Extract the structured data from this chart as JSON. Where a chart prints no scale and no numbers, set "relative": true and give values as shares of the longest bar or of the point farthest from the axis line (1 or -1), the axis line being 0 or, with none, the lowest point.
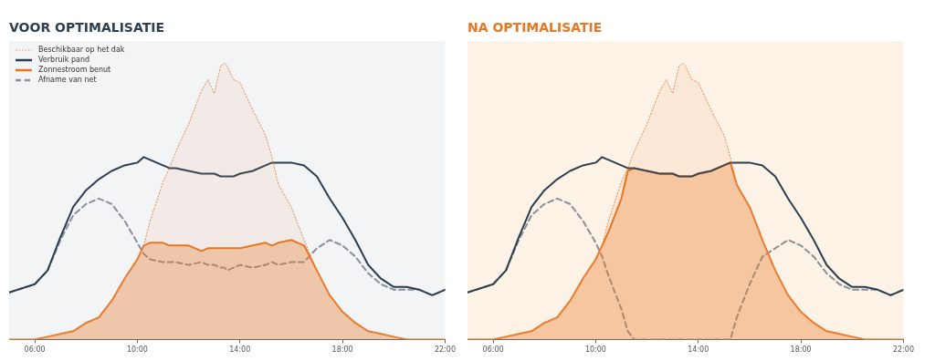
{
  "chart_data": [
    {
      "type": "line",
      "title": "VOOR OPTIMALISATIE",
      "relative": true,
      "marker": "none",
      "legend": "top left",
      "tick_labels": "x",
      "xlim": [
        5,
        22
      ],
      "xticks": [
        {
          "value": 6,
          "label": "06:00"
        },
        {
          "value": 10,
          "label": "10:00"
        },
        {
          "value": 14,
          "label": "14:00"
        },
        {
          "value": 18,
          "label": "18:00"
        },
        {
          "value": 22,
          "label": "22:00"
        }
      ],
      "x": [
        5,
        6,
        6.5,
        7,
        7.5,
        8,
        8.5,
        9,
        9.5,
        10,
        10.25,
        10.5,
        11,
        11.25,
        11.5,
        12,
        12.5,
        12.75,
        13,
        13.25,
        13.4,
        13.5,
        13.75,
        14,
        14.5,
        15,
        15.25,
        15.5,
        16,
        16.5,
        17,
        17.5,
        18,
        18.5,
        19,
        19.5,
        20,
        20.5,
        21,
        21.5,
        22
      ],
      "series": [
        {
          "name": "Beschikbaar op het dak",
          "type": "area",
          "line_style": "dotted",
          "color": "#e8915a",
          "values": [
            0,
            0,
            0.01,
            0.02,
            0.03,
            0.06,
            0.08,
            0.14,
            0.22,
            0.29,
            0.34,
            0.43,
            0.57,
            0.62,
            0.68,
            0.78,
            0.9,
            0.94,
            0.89,
            0.99,
            1,
            0.99,
            0.94,
            0.93,
            0.83,
            0.74,
            0.66,
            0.56,
            0.48,
            0.36,
            0.25,
            0.16,
            0.1,
            0.06,
            0.03,
            0.02,
            0.01,
            0,
            0,
            0,
            0
          ]
        },
        {
          "name": "Verbruik pand",
          "type": "line",
          "line_style": "solid",
          "color": "#2c3e50",
          "values": [
            0.17,
            0.2,
            0.25,
            0.37,
            0.48,
            0.54,
            0.58,
            0.61,
            0.63,
            0.64,
            0.66,
            0.65,
            0.63,
            0.62,
            0.62,
            0.61,
            0.6,
            0.6,
            0.6,
            0.59,
            0.59,
            0.59,
            0.59,
            0.6,
            0.61,
            0.63,
            0.64,
            0.64,
            0.64,
            0.63,
            0.59,
            0.51,
            0.44,
            0.36,
            0.27,
            0.22,
            0.19,
            0.19,
            0.18,
            0.16,
            0.18
          ]
        },
        {
          "name": "Zonnestroom benut",
          "type": "area",
          "line_style": "solid",
          "color": "#e8731a",
          "values": [
            0,
            0,
            0.01,
            0.02,
            0.03,
            0.06,
            0.08,
            0.14,
            0.22,
            0.29,
            0.34,
            0.35,
            0.35,
            0.34,
            0.34,
            0.34,
            0.32,
            0.33,
            0.33,
            0.33,
            0.33,
            0.33,
            0.33,
            0.33,
            0.34,
            0.35,
            0.34,
            0.35,
            0.36,
            0.34,
            0.25,
            0.16,
            0.1,
            0.06,
            0.03,
            0.02,
            0.01,
            0,
            0,
            0,
            0
          ]
        },
        {
          "name": "Afname van net",
          "type": "line",
          "line_style": "dashed",
          "color": "#8a9099",
          "values": [
            0.17,
            0.2,
            0.25,
            0.36,
            0.45,
            0.49,
            0.51,
            0.49,
            0.43,
            0.35,
            0.31,
            0.29,
            0.28,
            0.28,
            0.28,
            0.27,
            0.28,
            0.27,
            0.27,
            0.26,
            0.26,
            0.25,
            0.26,
            0.27,
            0.26,
            0.27,
            0.28,
            0.27,
            0.28,
            0.28,
            0.33,
            0.36,
            0.34,
            0.3,
            0.24,
            0.2,
            0.18,
            0.18,
            0.18,
            0.16,
            0.18
          ]
        }
      ]
    },
    {
      "type": "line",
      "title": "NA OPTIMALISATIE",
      "relative": true,
      "marker": "none",
      "tick_labels": "x",
      "xlim": [
        5,
        22
      ],
      "xticks": [
        {
          "value": 6,
          "label": "06:00"
        },
        {
          "value": 10,
          "label": "10:00"
        },
        {
          "value": 14,
          "label": "14:00"
        },
        {
          "value": 18,
          "label": "18:00"
        },
        {
          "value": 22,
          "label": "22:00"
        }
      ],
      "x": [
        5,
        6,
        6.5,
        7,
        7.5,
        8,
        8.5,
        9,
        9.5,
        10,
        10.25,
        10.5,
        11,
        11.25,
        11.5,
        12,
        12.5,
        12.75,
        13,
        13.25,
        13.4,
        13.5,
        13.75,
        14,
        14.5,
        15,
        15.25,
        15.5,
        16,
        16.5,
        17,
        17.5,
        18,
        18.5,
        19,
        19.5,
        20,
        20.5,
        21,
        21.5,
        22
      ],
      "series": [
        {
          "type": "area",
          "line_style": "dotted",
          "color": "#e8915a",
          "values": [
            0,
            0,
            0.01,
            0.02,
            0.03,
            0.06,
            0.08,
            0.14,
            0.22,
            0.29,
            0.34,
            0.43,
            0.57,
            0.62,
            0.68,
            0.78,
            0.9,
            0.94,
            0.89,
            0.99,
            1,
            0.99,
            0.94,
            0.93,
            0.83,
            0.74,
            0.66,
            0.56,
            0.48,
            0.36,
            0.25,
            0.16,
            0.1,
            0.06,
            0.03,
            0.02,
            0.01,
            0,
            0,
            0,
            0
          ]
        },
        {
          "type": "line",
          "line_style": "solid",
          "color": "#2c3e50",
          "values": [
            0.17,
            0.2,
            0.25,
            0.37,
            0.48,
            0.54,
            0.58,
            0.61,
            0.63,
            0.64,
            0.66,
            0.65,
            0.63,
            0.62,
            0.62,
            0.61,
            0.6,
            0.6,
            0.6,
            0.59,
            0.59,
            0.59,
            0.59,
            0.6,
            0.61,
            0.63,
            0.64,
            0.64,
            0.64,
            0.63,
            0.59,
            0.51,
            0.44,
            0.36,
            0.27,
            0.22,
            0.19,
            0.19,
            0.18,
            0.16,
            0.18
          ]
        },
        {
          "type": "area",
          "line_style": "solid",
          "color": "#e8731a",
          "values": [
            0,
            0,
            0.01,
            0.02,
            0.03,
            0.06,
            0.08,
            0.14,
            0.22,
            0.29,
            0.34,
            0.39,
            0.51,
            0.61,
            0.62,
            0.61,
            0.6,
            0.6,
            0.6,
            0.59,
            0.59,
            0.59,
            0.59,
            0.6,
            0.61,
            0.63,
            0.64,
            0.56,
            0.48,
            0.36,
            0.25,
            0.16,
            0.1,
            0.06,
            0.03,
            0.02,
            0.01,
            0,
            0,
            0,
            0
          ]
        },
        {
          "type": "line",
          "line_style": "dashed",
          "color": "#8a9099",
          "values": [
            0.17,
            0.2,
            0.25,
            0.36,
            0.45,
            0.49,
            0.51,
            0.49,
            0.43,
            0.35,
            0.3,
            0.23,
            0.11,
            0.03,
            0,
            0,
            0,
            0,
            0,
            0,
            0,
            0,
            0,
            0,
            0,
            0,
            0,
            0.08,
            0.2,
            0.3,
            0.33,
            0.36,
            0.34,
            0.3,
            0.24,
            0.2,
            0.18,
            0.18,
            0.18,
            0.16,
            0.18
          ]
        }
      ]
    }
  ]
}
